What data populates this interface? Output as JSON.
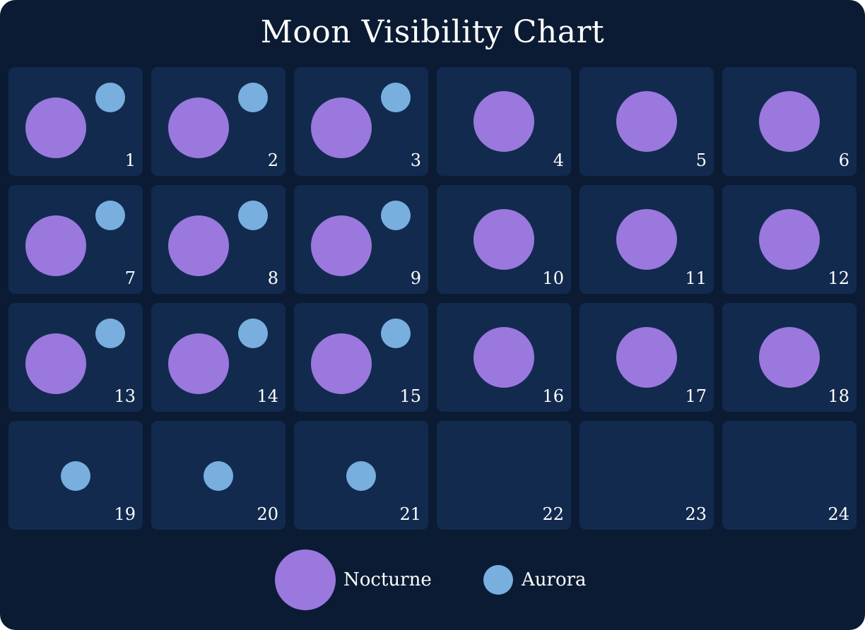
{
  "chart_data": {
    "type": "table",
    "title": "Moon Visibility Chart",
    "x": [
      1,
      2,
      3,
      4,
      5,
      6,
      7,
      8,
      9,
      10,
      11,
      12,
      13,
      14,
      15,
      16,
      17,
      18,
      19,
      20,
      21,
      22,
      23,
      24
    ],
    "series": [
      {
        "name": "Nocturne",
        "color": "#9a78de",
        "values": [
          1,
          1,
          1,
          1,
          1,
          1,
          1,
          1,
          1,
          1,
          1,
          1,
          1,
          1,
          1,
          1,
          1,
          1,
          0,
          0,
          0,
          0,
          0,
          0
        ]
      },
      {
        "name": "Aurora",
        "color": "#78afdf",
        "values": [
          1,
          1,
          1,
          0,
          0,
          0,
          1,
          1,
          1,
          0,
          0,
          0,
          1,
          1,
          1,
          0,
          0,
          0,
          1,
          1,
          1,
          0,
          0,
          0
        ]
      }
    ],
    "legend_position": "bottom"
  }
}
